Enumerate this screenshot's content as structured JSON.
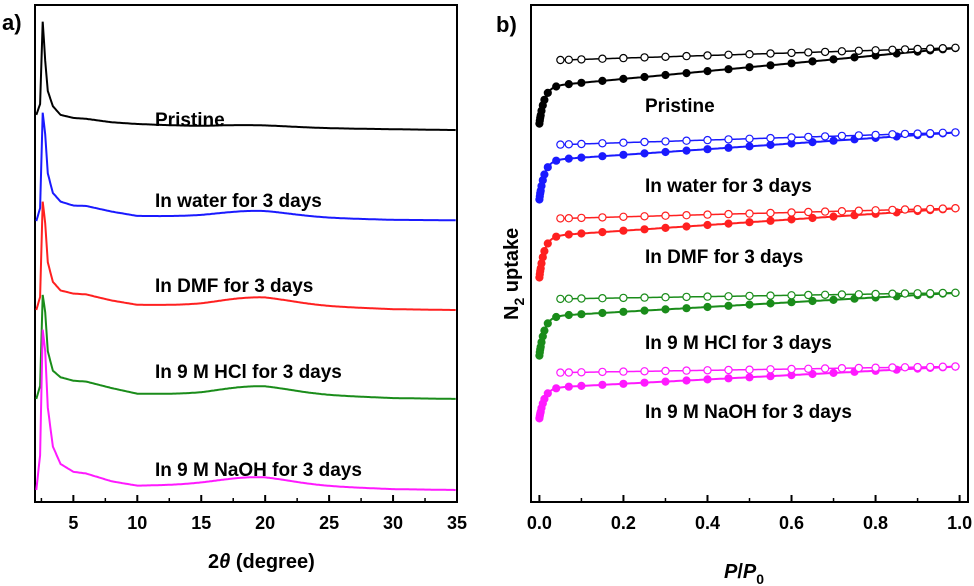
{
  "figure": {
    "panel_a_label": "a)",
    "panel_b_label": "b)"
  },
  "chart_data": [
    {
      "type": "line",
      "panel": "a)",
      "xlabel_prefix": "2",
      "xlabel_theta": "θ",
      "xlabel_suffix": " (degree)",
      "ylabel": "",
      "xlim": [
        2,
        35
      ],
      "xticks": [
        5,
        10,
        15,
        20,
        25,
        30,
        35
      ],
      "yticks": false,
      "y_offset_stacked": true,
      "series": [
        {
          "name": "Pristine",
          "color": "#000000",
          "offset": 8.3,
          "peak": 2.5,
          "hump": 0.05,
          "x": [
            2.1,
            2.4,
            2.6,
            2.8,
            3.0,
            3.4,
            4.0,
            5.0,
            6.0,
            8.0,
            10,
            15,
            20,
            25,
            30,
            35
          ],
          "y": [
            0.35,
            0.6,
            2.5,
            1.6,
            0.9,
            0.55,
            0.35,
            0.28,
            0.26,
            0.18,
            0.14,
            0.08,
            0.06,
            0.04,
            0.02,
            0.0
          ]
        },
        {
          "name": "In water for 3 days",
          "color": "#1a1aff",
          "offset": 6.2,
          "peak": 2.5,
          "hump": 0.12,
          "x": [
            2.1,
            2.4,
            2.6,
            2.8,
            3.0,
            3.4,
            4.0,
            5.0,
            6.0,
            8.0,
            10,
            15,
            20,
            25,
            30,
            35
          ],
          "y": [
            0.0,
            0.3,
            2.5,
            2.0,
            1.1,
            0.65,
            0.45,
            0.36,
            0.35,
            0.22,
            0.12,
            0.1,
            0.12,
            0.07,
            0.03,
            0.02
          ]
        },
        {
          "name": "In DMF for 3 days",
          "color": "#ff2020",
          "offset": 4.15,
          "peak": 2.5,
          "hump": 0.15,
          "x": [
            2.1,
            2.4,
            2.6,
            2.8,
            3.0,
            3.4,
            4.0,
            5.0,
            6.0,
            8.0,
            10,
            15,
            20,
            25,
            30,
            35
          ],
          "y": [
            0.0,
            0.3,
            2.5,
            2.0,
            1.1,
            0.65,
            0.45,
            0.38,
            0.36,
            0.22,
            0.12,
            0.1,
            0.15,
            0.08,
            0.02,
            0.0
          ]
        },
        {
          "name": "In 9 M HCl for 3 days",
          "color": "#1a8c1a",
          "offset": 2.1,
          "peak": 2.4,
          "hump": 0.15,
          "x": [
            2.1,
            2.4,
            2.6,
            2.8,
            3.0,
            3.4,
            4.0,
            5.0,
            6.0,
            8.0,
            10,
            15,
            20,
            25,
            30,
            35
          ],
          "y": [
            0.0,
            0.3,
            2.4,
            2.0,
            1.1,
            0.65,
            0.5,
            0.42,
            0.4,
            0.25,
            0.12,
            0.1,
            0.15,
            0.08,
            0.02,
            0.0
          ]
        },
        {
          "name": "In 9 M NaOH for 3 days",
          "color": "#ff1aff",
          "offset": 0.0,
          "peak": 3.7,
          "hump": 0.15,
          "x": [
            2.1,
            2.4,
            2.6,
            2.8,
            3.0,
            3.4,
            4.0,
            5.0,
            6.0,
            8.0,
            10,
            15,
            20,
            25,
            30,
            35
          ],
          "y": [
            0.0,
            0.8,
            3.7,
            3.2,
            1.9,
            1.0,
            0.6,
            0.42,
            0.38,
            0.2,
            0.1,
            0.12,
            0.15,
            0.08,
            0.02,
            0.0
          ]
        }
      ]
    },
    {
      "type": "scatter",
      "panel": "b)",
      "xlabel_P": "P",
      "xlabel_slash": "/",
      "xlabel_P0": "P",
      "xlabel_sub": "0",
      "ylabel_N": "N",
      "ylabel_sub": "2",
      "ylabel_rest": " uptake",
      "xlim": [
        -0.02,
        1.02
      ],
      "xticks": [
        "0.0",
        "0.2",
        "0.4",
        "0.6",
        "0.8",
        "1.0"
      ],
      "xtick_values": [
        0.0,
        0.2,
        0.4,
        0.6,
        0.8,
        1.0
      ],
      "yticks": false,
      "y_offset_stacked": true,
      "series": [
        {
          "name": "Pristine",
          "color": "#000000",
          "adsorption_start": 8.45,
          "knee": 9.3,
          "adsorption_end": 10.2,
          "desorption_level": 9.95
        },
        {
          "name": "In water for 3 days",
          "color": "#1a1aff",
          "adsorption_start": 6.7,
          "knee": 7.6,
          "adsorption_end": 8.25,
          "desorption_level": 8.0
        },
        {
          "name": "In DMF for 3 days",
          "color": "#ff2020",
          "adsorption_start": 4.9,
          "knee": 5.85,
          "adsorption_end": 6.5,
          "desorption_level": 6.3
        },
        {
          "name": "In 9 M HCl for 3 days",
          "color": "#1a8c1a",
          "adsorption_start": 3.1,
          "knee": 4.0,
          "adsorption_end": 4.55,
          "desorption_level": 4.45
        },
        {
          "name": "In 9 M NaOH for 3 days",
          "color": "#ff1aff",
          "adsorption_start": 1.65,
          "knee": 2.35,
          "adsorption_end": 2.85,
          "desorption_level": 2.75
        }
      ]
    }
  ]
}
